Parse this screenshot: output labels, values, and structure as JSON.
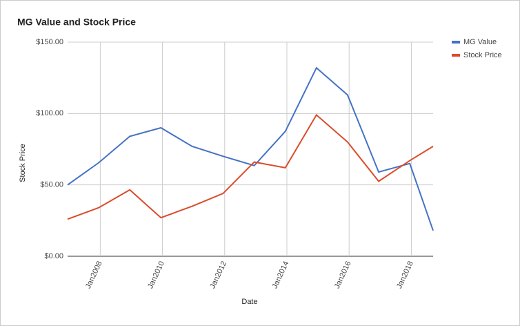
{
  "chart_data": {
    "type": "line",
    "title": "MG Value and Stock Price",
    "x_label": "Date",
    "y_label": "Stock Price",
    "x": [
      2006.95,
      2007.95,
      2008.95,
      2009.95,
      2010.95,
      2011.95,
      2012.95,
      2013.95,
      2014.95,
      2015.95,
      2016.95,
      2017.95,
      2018.7
    ],
    "series": [
      {
        "name": "MG Value",
        "color": "#4472c4",
        "values": [
          50,
          65.5,
          84,
          90,
          77,
          70,
          63.5,
          87.5,
          132,
          113,
          59,
          65,
          18
        ]
      },
      {
        "name": "Stock Price",
        "color": "#db4b2a",
        "values": [
          26,
          34,
          46.5,
          27,
          35,
          44,
          66,
          62,
          99,
          80,
          52.5,
          67,
          77
        ]
      }
    ],
    "xlim": [
      2006.95,
      2018.7
    ],
    "xticks": [
      {
        "value": 2008,
        "label": "Jan2008"
      },
      {
        "value": 2010,
        "label": "Jan2010"
      },
      {
        "value": 2012,
        "label": "Jan2012"
      },
      {
        "value": 2014,
        "label": "Jan2014"
      },
      {
        "value": 2016,
        "label": "Jan2016"
      },
      {
        "value": 2018,
        "label": "Jan2018"
      }
    ],
    "ylim": [
      0,
      150
    ],
    "yticks": [
      {
        "value": 0,
        "label": "$0.00"
      },
      {
        "value": 50,
        "label": "$50.00"
      },
      {
        "value": 100,
        "label": "$100.00"
      },
      {
        "value": 150,
        "label": "$150.00"
      }
    ],
    "grid": true,
    "legend": "right"
  }
}
